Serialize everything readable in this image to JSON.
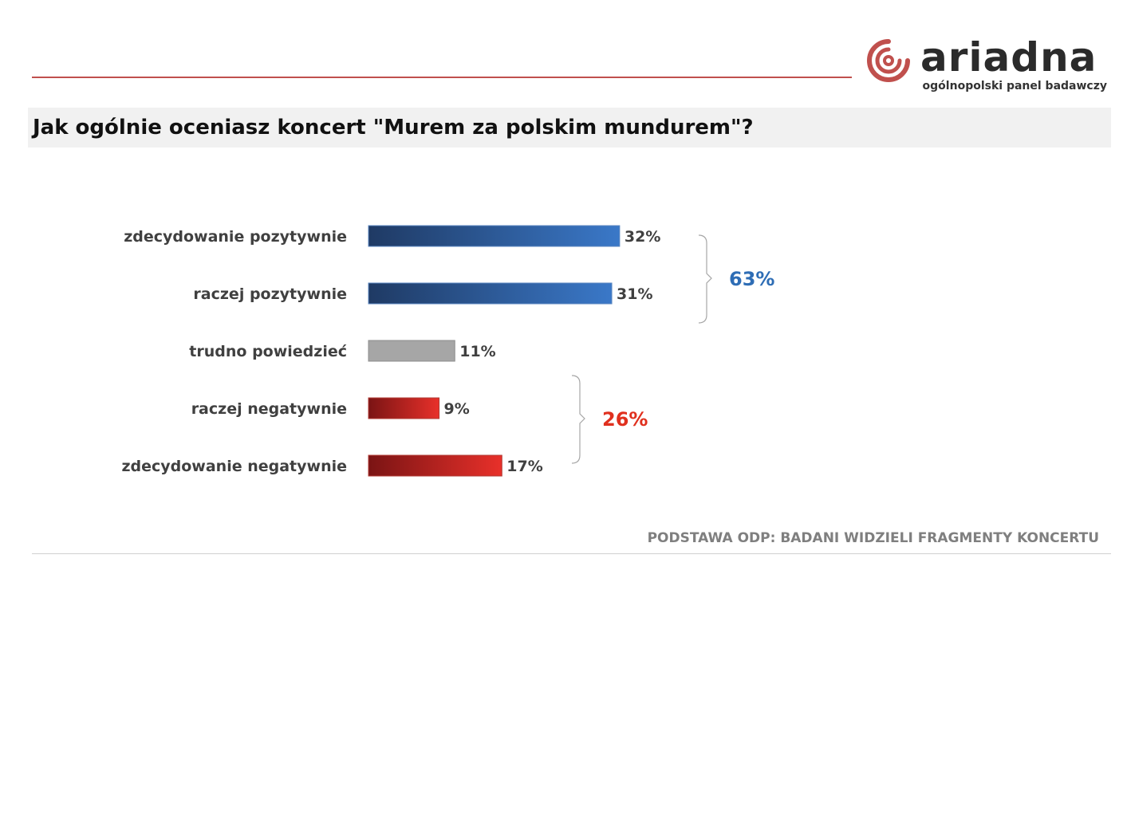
{
  "brand": {
    "name": "ariadna",
    "tagline": "ogólnopolski panel badawczy"
  },
  "title": "Jak ogólnie oceniasz koncert \"Murem za polskim mundurem\"?",
  "footnote": "PODSTAWA ODP: BADANI WIDZIELI FRAGMENTY KONCERTU",
  "colors": {
    "accent_rule": "#c0504d",
    "positive_dark": "#1f3a64",
    "positive_light": "#3a78c8",
    "neutral": "#a6a6a6",
    "negative_dark": "#7a1414",
    "negative_light": "#e8302a",
    "positive_total": "#2e6db5",
    "negative_total": "#e0301e"
  },
  "chart_data": {
    "type": "bar",
    "orientation": "horizontal",
    "categories": [
      "zdecydowanie pozytywnie",
      "raczej pozytywnie",
      "trudno powiedzieć",
      "raczej negatywnie",
      "zdecydowanie negatywnie"
    ],
    "values": [
      32,
      31,
      11,
      9,
      17
    ],
    "value_labels": [
      "32%",
      "31%",
      "11%",
      "9%",
      "17%"
    ],
    "unit": "%",
    "groups": [
      {
        "label": "63%",
        "value": 63,
        "categories": [
          0,
          1
        ],
        "color": "#2e6db5"
      },
      {
        "label": "26%",
        "value": 26,
        "categories": [
          3,
          4
        ],
        "color": "#e0301e"
      }
    ],
    "xlim": [
      0,
      32
    ],
    "grid": false,
    "legend": "none"
  }
}
